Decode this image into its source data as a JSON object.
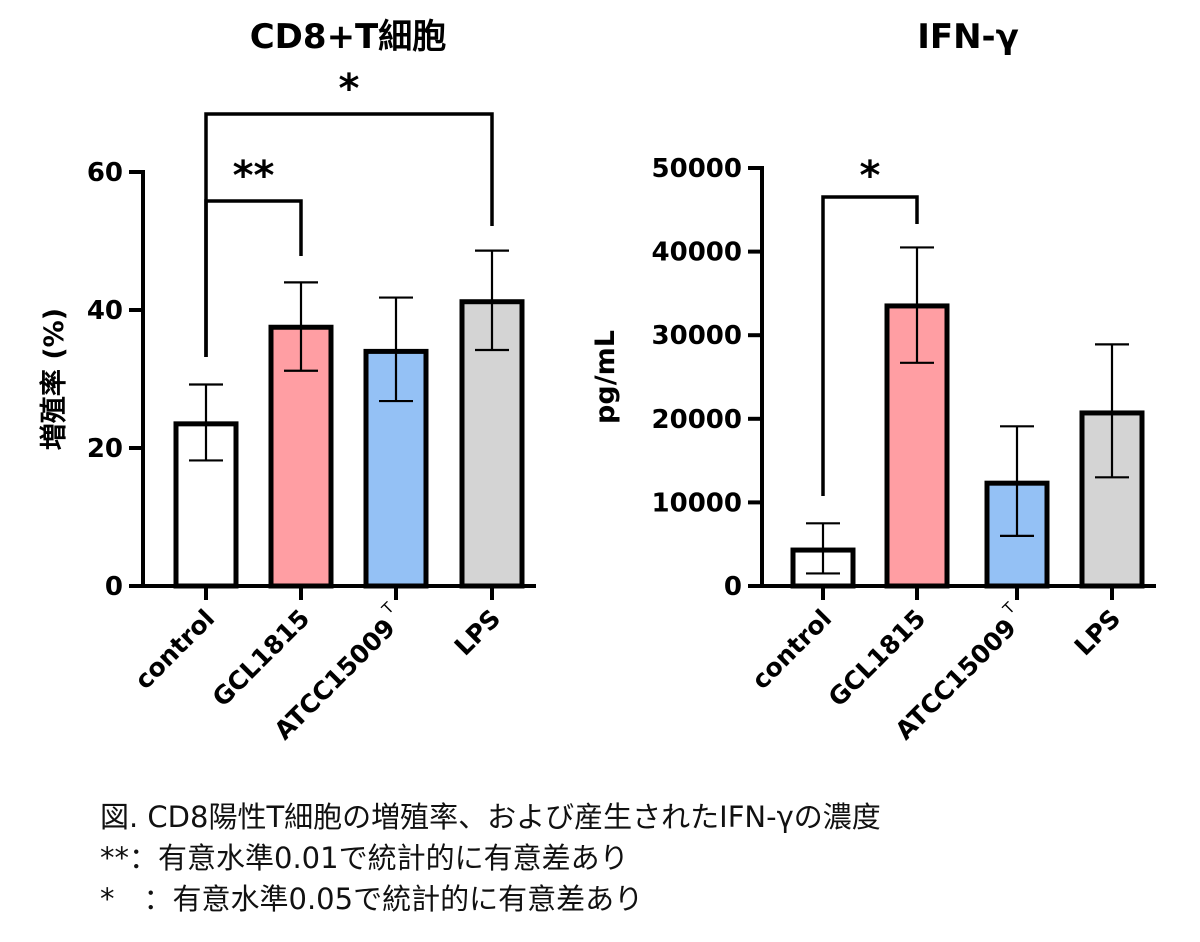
{
  "chart_data": [
    {
      "type": "bar",
      "title": "CD8+T細胞",
      "ylabel": "増殖率 (%)",
      "xlabel": "",
      "ylim": [
        0,
        60
      ],
      "yticks": [
        0,
        20,
        40,
        60
      ],
      "categories": [
        "control",
        "GCL1815",
        "ATCC15009",
        "LPS"
      ],
      "category_superscripts": [
        "",
        "",
        "T",
        ""
      ],
      "values": [
        23.5,
        37.5,
        34,
        41.2
      ],
      "error_low": [
        18.2,
        31.2,
        26.8,
        34.2
      ],
      "error_high": [
        29.2,
        44,
        41.8,
        48.6
      ],
      "colors": [
        "#ffffff",
        "#ff9ea3",
        "#94c1f5",
        "#d4d4d4"
      ],
      "significance": [
        {
          "from": 0,
          "to": 1,
          "label": "**"
        },
        {
          "from": 0,
          "to": 3,
          "label": "*"
        }
      ]
    },
    {
      "type": "bar",
      "title": "IFN-γ",
      "ylabel": "pg/mL",
      "xlabel": "",
      "ylim": [
        0,
        50000
      ],
      "yticks": [
        0,
        10000,
        20000,
        30000,
        40000,
        50000
      ],
      "categories": [
        "control",
        "GCL1815",
        "ATCC15009",
        "LPS"
      ],
      "category_superscripts": [
        "",
        "",
        "T",
        ""
      ],
      "values": [
        4300,
        33500,
        12300,
        20700
      ],
      "error_low": [
        1500,
        26700,
        6000,
        13000
      ],
      "error_high": [
        7500,
        40500,
        19100,
        28900
      ],
      "colors": [
        "#ffffff",
        "#ff9ea3",
        "#94c1f5",
        "#d4d4d4"
      ],
      "significance": [
        {
          "from": 0,
          "to": 1,
          "label": "*"
        }
      ]
    }
  ],
  "caption": {
    "line1": "図. CD8陽性T細胞の増殖率、および産生されたIFN-γの濃度",
    "line2": "**：有意水準0.01で統計的に有意差あり",
    "line3": "*　：有意水準0.05で統計的に有意差あり"
  }
}
